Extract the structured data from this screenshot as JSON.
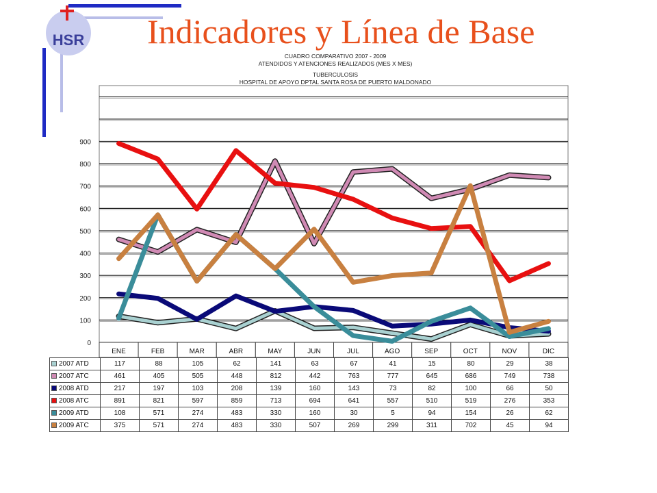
{
  "page": {
    "title": "Indicadores y Línea de Base",
    "logo_text": "HSR"
  },
  "chart_data": {
    "type": "line",
    "title_lines": [
      "CUADRO COMPARATIVO 2007 - 2009",
      "ATENDIDOS Y ATENCIONES  REALIZADOS (MES X MES)",
      "TUBERCULOSIS",
      "HOSPITAL DE APOYO DPTAL SANTA ROSA DE PUERTO MALDONADO"
    ],
    "categories": [
      "ENE",
      "FEB",
      "MAR",
      "ABR",
      "MAY",
      "JUN",
      "JUL",
      "AGO",
      "SEP",
      "OCT",
      "NOV",
      "DIC"
    ],
    "y_ticks": [
      0,
      100,
      200,
      300,
      400,
      500,
      600,
      700,
      800,
      900
    ],
    "ylim": [
      0,
      1150
    ],
    "grid": true,
    "series": [
      {
        "name": "2007 ATD",
        "color": "#a9d1d1",
        "style": "3d",
        "values": [
          117,
          88,
          105,
          62,
          141,
          63,
          67,
          41,
          15,
          80,
          29,
          38
        ]
      },
      {
        "name": "2007 ATC",
        "color": "#d08ab4",
        "style": "3d",
        "values": [
          461,
          405,
          505,
          448,
          812,
          442,
          763,
          777,
          645,
          686,
          749,
          738
        ]
      },
      {
        "name": "2008 ATD",
        "color": "#0a0a78",
        "style": "flat",
        "values": [
          217,
          197,
          103,
          208,
          139,
          160,
          143,
          73,
          82,
          100,
          66,
          50
        ]
      },
      {
        "name": "2008 ATC",
        "color": "#e81010",
        "style": "flat",
        "values": [
          891,
          821,
          597,
          859,
          713,
          694,
          641,
          557,
          510,
          519,
          276,
          353
        ]
      },
      {
        "name": "2009 ATD",
        "color": "#3a8d9a",
        "style": "flat",
        "values": [
          108,
          571,
          274,
          483,
          330,
          160,
          30,
          5,
          94,
          154,
          26,
          62
        ]
      },
      {
        "name": "2009 ATC",
        "color": "#c88040",
        "style": "flat",
        "values": [
          375,
          571,
          274,
          483,
          330,
          507,
          269,
          299,
          311,
          702,
          45,
          94
        ]
      }
    ]
  }
}
